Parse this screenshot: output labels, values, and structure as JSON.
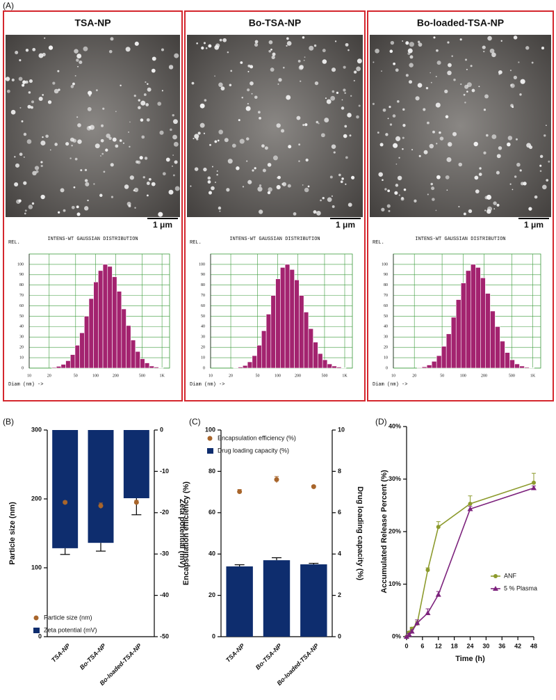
{
  "panel_labels": [
    "(A)",
    "(B)",
    "(C)",
    "(D)"
  ],
  "chart_data": [
    {
      "type": "histogram",
      "title": "TSA-NP",
      "scale_bar": "1 μm",
      "y_header": "REL.",
      "subtitle": "INTENS-WT GAUSSIAN DISTRIBUTION",
      "xlabel": "Diam (nm) ->",
      "xscale": "log",
      "xlim": [
        10,
        1300
      ],
      "ylim": [
        0,
        110
      ],
      "xticks": [
        10,
        20,
        50,
        100,
        200,
        500,
        {
          "value": 1000,
          "label": "1K"
        }
      ],
      "yticks": [
        0,
        10,
        20,
        30,
        40,
        50,
        60,
        70,
        80,
        90,
        100
      ],
      "bins": [
        21.9,
        25.7,
        30.2,
        35.5,
        41.7,
        49.0,
        57.5,
        67.6,
        79.4,
        93.3,
        109.6,
        128.8,
        151.4,
        177.8,
        208.9,
        245.5,
        288.4,
        338.8,
        398.1,
        467.7,
        549.5,
        645.7,
        758.6,
        891.3,
        1047
      ],
      "values": [
        0.7,
        1.7,
        3.6,
        7.1,
        13,
        22,
        34,
        50,
        67,
        83,
        94,
        100,
        98,
        88,
        74,
        57,
        41,
        27,
        16,
        9,
        5,
        2,
        1,
        0.4
      ],
      "color": "#a3236f",
      "grid_color": "#3a9a3a"
    },
    {
      "type": "histogram",
      "title": "Bo-TSA-NP",
      "scale_bar": "1 μm",
      "y_header": "REL.",
      "subtitle": "INTENS-WT GAUSSIAN DISTRIBUTION",
      "xlabel": "Diam (nm) ->",
      "xscale": "log",
      "xlim": [
        10,
        1300
      ],
      "ylim": [
        0,
        110
      ],
      "xticks": [
        10,
        20,
        50,
        100,
        200,
        500,
        {
          "value": 1000,
          "label": "1K"
        }
      ],
      "yticks": [
        0,
        10,
        20,
        30,
        40,
        50,
        60,
        70,
        80,
        90,
        100
      ],
      "bins": [
        21.9,
        25.7,
        30.2,
        35.5,
        41.7,
        49.0,
        57.5,
        67.6,
        79.4,
        93.3,
        109.6,
        128.8,
        151.4,
        177.8,
        208.9,
        245.5,
        288.4,
        338.8,
        398.1,
        467.7,
        549.5,
        645.7,
        758.6,
        891.3,
        1047
      ],
      "values": [
        0.4,
        1,
        2.5,
        6,
        12,
        22,
        36,
        52,
        70,
        86,
        97,
        100,
        95,
        85,
        70,
        54,
        38,
        25,
        14,
        8,
        4,
        2,
        1,
        0.3
      ],
      "color": "#a3236f",
      "grid_color": "#3a9a3a"
    },
    {
      "type": "histogram",
      "title": "Bo-loaded-TSA-NP",
      "scale_bar": "1 μm",
      "y_header": "REL.",
      "subtitle": "INTENS-WT GAUSSIAN DISTRIBUTION",
      "xlabel": "Diam (nm) ->",
      "xscale": "log",
      "xlim": [
        10,
        1300
      ],
      "ylim": [
        0,
        110
      ],
      "xticks": [
        10,
        20,
        50,
        100,
        200,
        500,
        {
          "value": 1000,
          "label": "1K"
        }
      ],
      "yticks": [
        0,
        10,
        20,
        30,
        40,
        50,
        60,
        70,
        80,
        90,
        100
      ],
      "bins": [
        21.9,
        25.7,
        30.2,
        35.5,
        41.7,
        49.0,
        57.5,
        67.6,
        79.4,
        93.3,
        109.6,
        128.8,
        151.4,
        177.8,
        208.9,
        245.5,
        288.4,
        338.8,
        398.1,
        467.7,
        549.5,
        645.7,
        758.6,
        891.3,
        1047
      ],
      "values": [
        0.5,
        1.2,
        3,
        6.5,
        12,
        21,
        33,
        49,
        66,
        82,
        94,
        100,
        97,
        87,
        72,
        55,
        40,
        26,
        15,
        8,
        4,
        2,
        0.8,
        0.3
      ],
      "color": "#a3236f",
      "grid_color": "#3a9a3a"
    },
    {
      "type": "bar",
      "categories": [
        "TSA-NP",
        "Bo-TSA-NP",
        "Bo-loaded-TSA-NP"
      ],
      "ylabel": "Particle size (nm)",
      "y2label": "Zeta potential (mV)",
      "ylim": [
        0,
        300
      ],
      "yticks": [
        0,
        100,
        200,
        300
      ],
      "y2lim": [
        -50,
        0
      ],
      "y2ticks": [
        -50,
        -40,
        -30,
        -20,
        -10,
        0
      ],
      "legend": "lower left",
      "series": [
        {
          "name": "Particle size (nm)",
          "mark": "point",
          "color": "#a8652b",
          "values": [
            195,
            190,
            195
          ],
          "errors": [
            2,
            4,
            3
          ]
        },
        {
          "name": "Zeta potential (mV)",
          "mark": "bar",
          "axis": "y2",
          "color": "#0e2d6e",
          "values": [
            -28.6,
            -27.3,
            -16.5
          ],
          "errors": [
            1.5,
            2,
            4
          ]
        }
      ]
    },
    {
      "type": "bar",
      "categories": [
        "TSA-NP",
        "Bo-TSA-NP",
        "Bo-loaded-TSA-NP"
      ],
      "ylabel": "Encapsulation efficiency (%)",
      "y2label": "Drug loading capacity (%)",
      "ylim": [
        0,
        100
      ],
      "yticks": [
        0,
        20,
        40,
        60,
        80,
        100
      ],
      "y2lim": [
        0,
        10
      ],
      "y2ticks": [
        0,
        2,
        4,
        6,
        8,
        10
      ],
      "legend": "upper left",
      "series": [
        {
          "name": "Encapsulation efficiency (%)",
          "mark": "point",
          "color": "#a8652b",
          "values": [
            70.2,
            76,
            72.6
          ],
          "errors": [
            1,
            1.5,
            0.6
          ]
        },
        {
          "name": "Drug loading capacity (%)",
          "mark": "bar",
          "axis": "y2",
          "color": "#0e2d6e",
          "values": [
            3.4,
            3.7,
            3.5
          ],
          "errors": [
            0.08,
            0.12,
            0.05
          ]
        }
      ]
    },
    {
      "type": "line",
      "xlabel": "Time (h)",
      "ylabel": "Accumulated Release Percent (%)",
      "x": [
        0,
        1,
        2,
        4,
        8,
        12,
        24,
        48
      ],
      "xlim": [
        0,
        48
      ],
      "xticks": [
        0,
        6,
        12,
        18,
        24,
        30,
        36,
        42,
        48
      ],
      "ylim": [
        0,
        40
      ],
      "yticks": [
        {
          "value": 0,
          "label": "0%"
        },
        {
          "value": 10,
          "label": "10%"
        },
        {
          "value": 20,
          "label": "20%"
        },
        {
          "value": 30,
          "label": "30%"
        },
        {
          "value": 40,
          "label": "40%"
        }
      ],
      "legend": "center right",
      "series": [
        {
          "name": "ANF",
          "color": "#8c9a2c",
          "marker": "circle",
          "values": [
            0,
            0.8,
            1.5,
            2.5,
            12.7,
            20.9,
            25.3,
            29.3
          ],
          "errors": [
            0,
            0.2,
            0.3,
            0.4,
            0.4,
            1,
            1.5,
            1.8
          ]
        },
        {
          "name": "5 % Plasma",
          "color": "#7d237d",
          "marker": "triangle",
          "values": [
            0,
            0.4,
            1,
            2.6,
            4.5,
            8,
            24.3,
            28.3
          ],
          "errors": [
            0,
            0.2,
            0.3,
            0.6,
            0.8,
            0.6,
            0.5,
            0.4
          ]
        }
      ]
    }
  ]
}
